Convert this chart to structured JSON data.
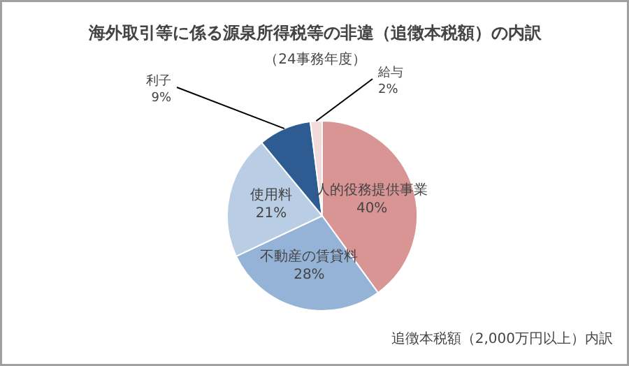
{
  "chart_data": {
    "type": "pie",
    "title": "海外取引等に係る源泉所得税等の非違（追徴本税額）の内訳",
    "subtitle": "（24事務年度）",
    "categories": [
      "人的役務提供事業",
      "不動産の賃貸料",
      "使用料",
      "利子",
      "給与"
    ],
    "values": [
      40,
      28,
      21,
      9,
      2
    ],
    "colors": [
      "#d99594",
      "#95b3d7",
      "#b9cde5",
      "#2e5c92",
      "#f2dcdb"
    ],
    "value_labels": [
      "40%",
      "28%",
      "21%",
      "9%",
      "2%"
    ],
    "annotations": [
      "追徴本税額（2,000万円以上）内訳"
    ]
  }
}
